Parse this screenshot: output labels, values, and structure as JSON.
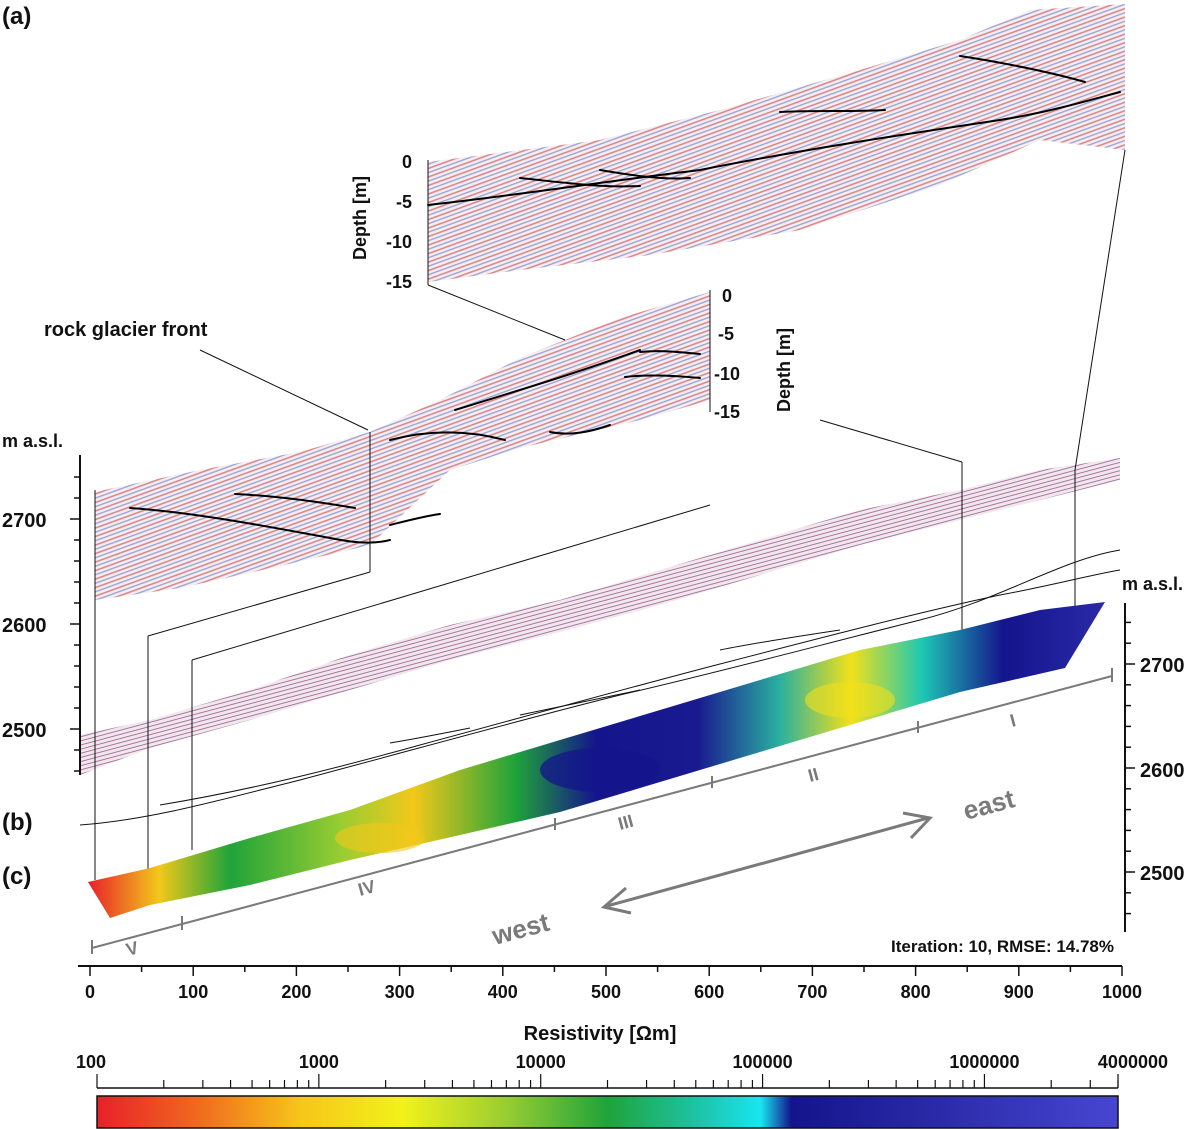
{
  "panels": {
    "a": "(a)",
    "b": "(b)",
    "c": "(c)"
  },
  "annotation": {
    "front": "rock glacier front"
  },
  "gpr_axes": {
    "depth_label": "Depth [m]",
    "ticks_upper": [
      "0",
      "-5",
      "-10",
      "-15"
    ],
    "ticks_lower": [
      "0",
      "-5",
      "-10",
      "-15"
    ]
  },
  "left_axis": {
    "unit": "m a.s.l.",
    "ticks": [
      "2700",
      "2600",
      "2500"
    ]
  },
  "right_axis": {
    "unit": "m a.s.l.",
    "ticks": [
      "2700",
      "2600",
      "2500"
    ]
  },
  "bottom_axis": {
    "ticks": [
      "0",
      "100",
      "200",
      "300",
      "400",
      "500",
      "600",
      "700",
      "800",
      "900",
      "1000"
    ]
  },
  "sections": [
    "V",
    "IV",
    "III",
    "II",
    "I"
  ],
  "directions": {
    "west": "west",
    "east": "east"
  },
  "inversion": {
    "stats": "Iteration: 10, RMSE: 14.78%"
  },
  "colorbar": {
    "label": "Resistivity [Ωm]",
    "ticks": [
      "100",
      "1000",
      "10000",
      "100000",
      "1000000",
      "4000000"
    ],
    "scale": "log",
    "colors": [
      "#e8202a",
      "#f06a1e",
      "#f7c61a",
      "#f2f21a",
      "#9acd32",
      "#1fa33a",
      "#1ec8b4",
      "#19e6f0",
      "#14148c",
      "#2a2aa8",
      "#4646d2"
    ]
  }
}
